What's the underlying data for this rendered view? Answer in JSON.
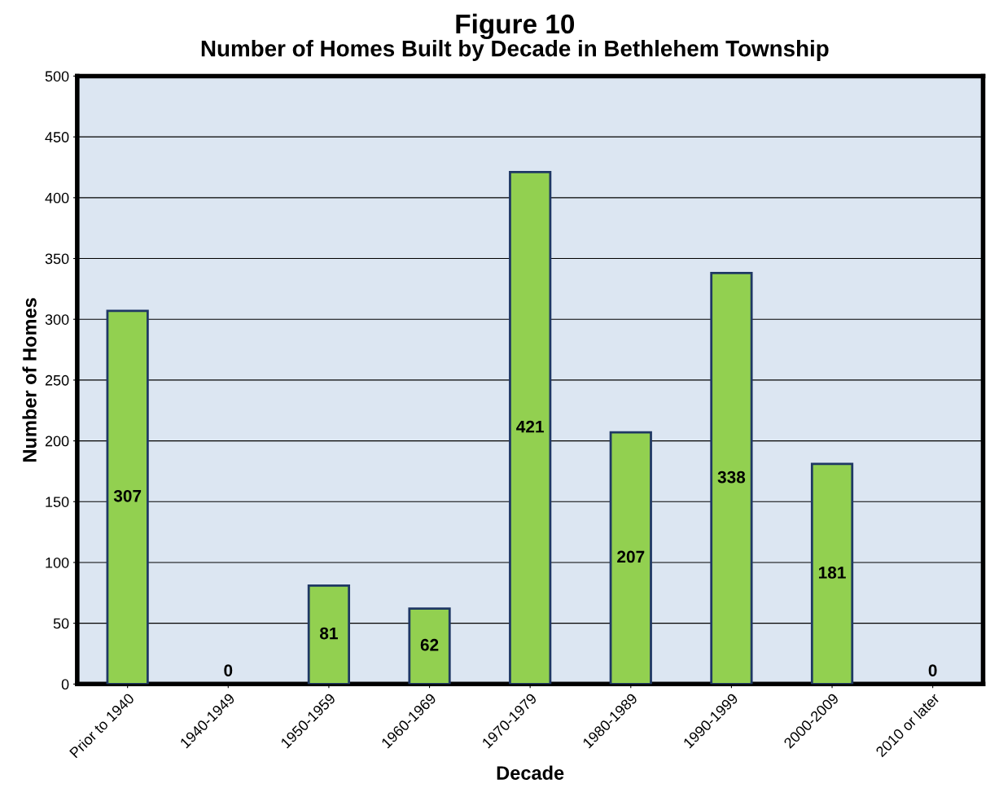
{
  "chart_data": {
    "type": "bar",
    "title": "Figure 10",
    "subtitle": "Number of Homes Built by Decade in Bethlehem Township",
    "xlabel": "Decade",
    "ylabel": "Number of Homes",
    "categories": [
      "Prior to 1940",
      "1940-1949",
      "1950-1959",
      "1960-1969",
      "1970-1979",
      "1980-1989",
      "1990-1999",
      "2000-2009",
      "2010 or later"
    ],
    "values": [
      307,
      0,
      81,
      62,
      421,
      207,
      338,
      181,
      0
    ],
    "color": "#92d050",
    "ylim": [
      0,
      500
    ],
    "yticks": [
      0,
      50,
      100,
      150,
      200,
      250,
      300,
      350,
      400,
      450,
      500
    ],
    "grid": "y",
    "data_labels": true,
    "legend": false
  }
}
